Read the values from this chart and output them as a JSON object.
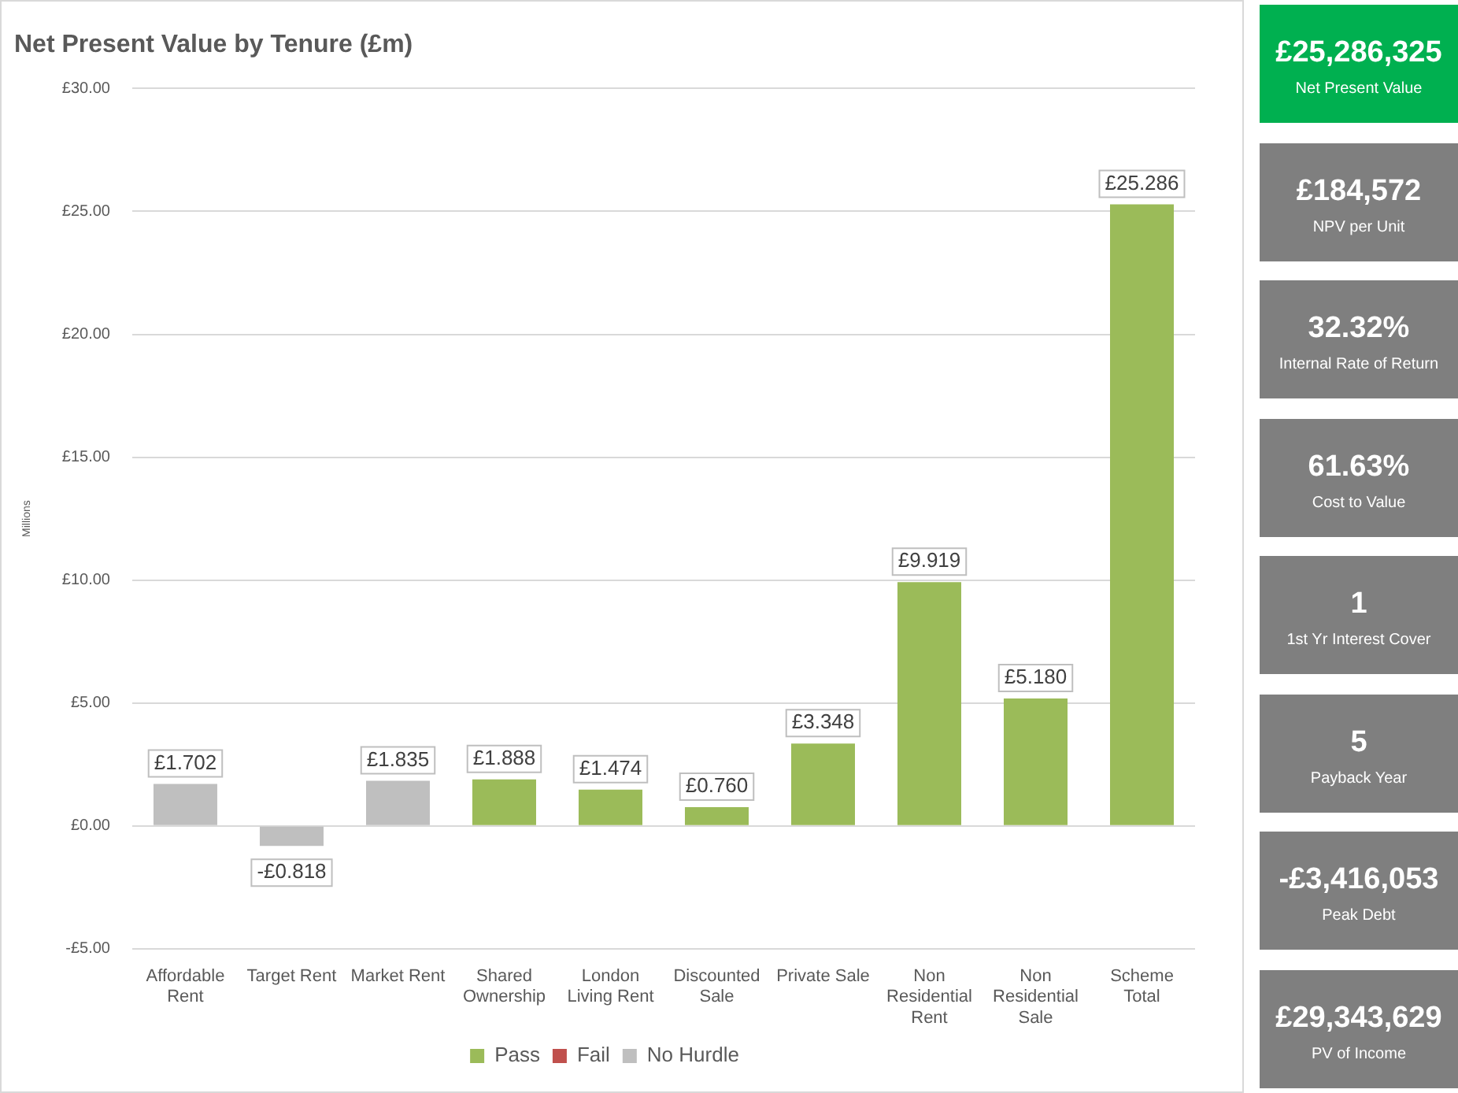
{
  "chart_data": [
    {
      "type": "bar",
      "title": "Net Present Value by Tenure (£m)",
      "ylabel": "Millions",
      "categories": [
        "Affordable Rent",
        "Target Rent",
        "Market Rent",
        "Shared Ownership",
        "London Living Rent",
        "Discounted Sale",
        "Private Sale",
        "Non Residential Rent",
        "Non Residential Sale",
        "Scheme Total"
      ],
      "series": [
        {
          "name": "Pass",
          "color": "#9bbb59",
          "values": [
            null,
            null,
            null,
            1.888,
            1.474,
            0.76,
            3.348,
            9.919,
            5.18,
            25.286
          ],
          "value_labels": [
            null,
            null,
            null,
            "£1.888",
            "£1.474",
            "£0.760",
            "£3.348",
            "£9.919",
            "£5.180",
            "£25.286"
          ]
        },
        {
          "name": "Fail",
          "color": "#c0504d",
          "values": [
            null,
            null,
            null,
            null,
            null,
            null,
            null,
            null,
            null,
            null
          ]
        },
        {
          "name": "No Hurdle",
          "color": "#bfbfbf",
          "values": [
            1.702,
            -0.818,
            1.835,
            null,
            null,
            null,
            null,
            null,
            null,
            null
          ],
          "value_labels": [
            "£1.702",
            "-£0.818",
            "£1.835",
            null,
            null,
            null,
            null,
            null,
            null,
            null
          ]
        }
      ],
      "stacked": true,
      "ylim": [
        -5,
        30
      ],
      "yticks": [
        {
          "value": -5,
          "label": "-£5.00"
        },
        {
          "value": 0,
          "label": "£0.00"
        },
        {
          "value": 5,
          "label": "£5.00"
        },
        {
          "value": 10,
          "label": "£10.00"
        },
        {
          "value": 15,
          "label": "£15.00"
        },
        {
          "value": 20,
          "label": "£20.00"
        },
        {
          "value": 25,
          "label": "£25.00"
        },
        {
          "value": 30,
          "label": "£30.00"
        }
      ],
      "grid": "y",
      "legend": "bottom"
    },
    {
      "type": "other",
      "annotations": [
        "£25,286,325",
        "Net Present Value",
        "£184,572",
        "NPV per Unit",
        "32.32%",
        "Internal Rate of Return",
        "61.63%",
        "Cost to Value",
        "1",
        "1st Yr Interest Cover",
        "5",
        "Payback Year",
        "-£3,416,053",
        "Peak Debt",
        "£29,343,629",
        "PV of Income"
      ],
      "colors": [
        "#00b050",
        "#7f7f7f",
        "#7f7f7f",
        "#7f7f7f",
        "#7f7f7f",
        "#7f7f7f",
        "#7f7f7f",
        "#7f7f7f"
      ]
    }
  ]
}
